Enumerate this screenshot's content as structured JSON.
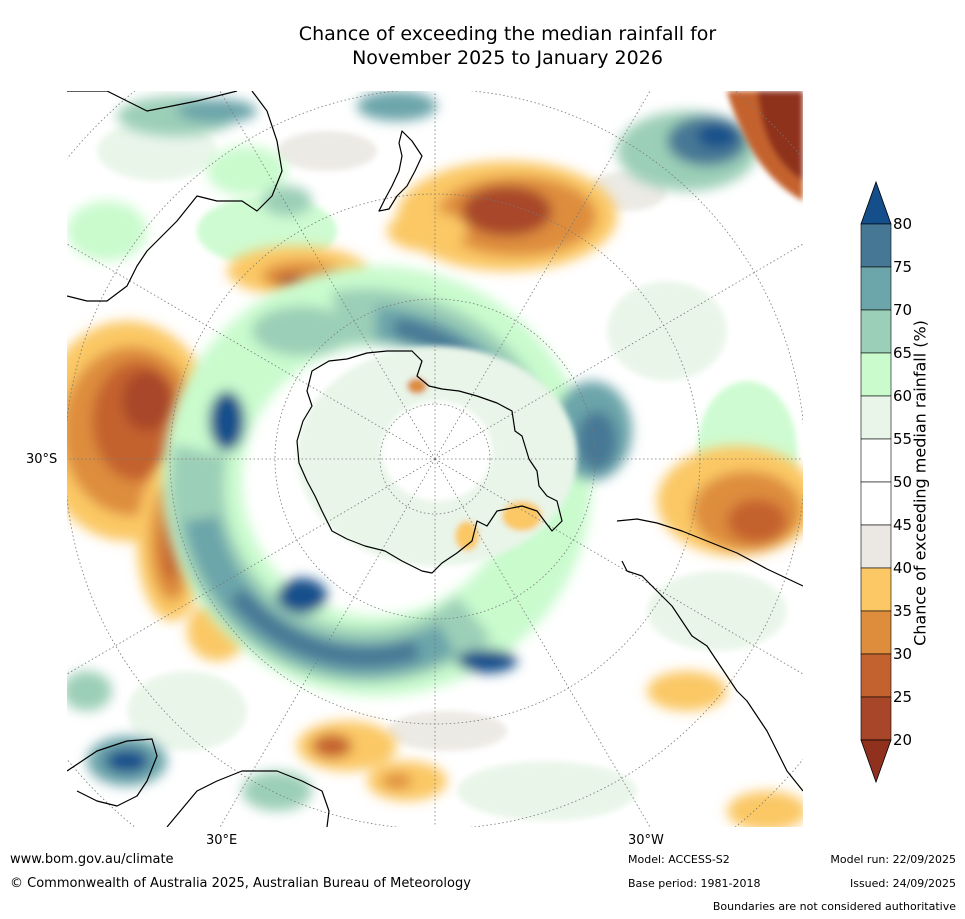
{
  "title": {
    "line1": "Chance of exceeding the median rainfall for",
    "line2": "November 2025 to January 2026"
  },
  "map": {
    "lat_label": "30°S",
    "lon_labels": [
      "30°E",
      "30°W"
    ]
  },
  "colorbar": {
    "label": "Chance of exceeding median rainfall (%)",
    "ticks": [
      "20",
      "25",
      "30",
      "35",
      "40",
      "45",
      "50",
      "55",
      "60",
      "65",
      "70",
      "75",
      "80"
    ],
    "colors": {
      "below_20": "#8f311d",
      "c20_25": "#a8462a",
      "c25_30": "#c4622f",
      "c30_35": "#de8d3d",
      "c35_40": "#fbc865",
      "c40_45": "#ebe8e3",
      "c45_50": "#ffffff",
      "c50_55": "#ffffff",
      "c55_60": "#e8f5e8",
      "c60_65": "#c9fbcd",
      "c65_70": "#9ccfb7",
      "c70_75": "#6ca5aa",
      "c75_80": "#467895",
      "above_80": "#144f8b"
    }
  },
  "footer": {
    "url": "www.bom.gov.au/climate",
    "copyright": "© Commonwealth of Australia 2025, Australian Bureau of Meteorology",
    "model": "Model: ACCESS-S2",
    "base_period": "Base period: 1981-2018",
    "model_run": "Model run: 22/09/2025",
    "issued": "Issued: 24/09/2025",
    "disclaimer": "Boundaries are not considered authoritative"
  }
}
